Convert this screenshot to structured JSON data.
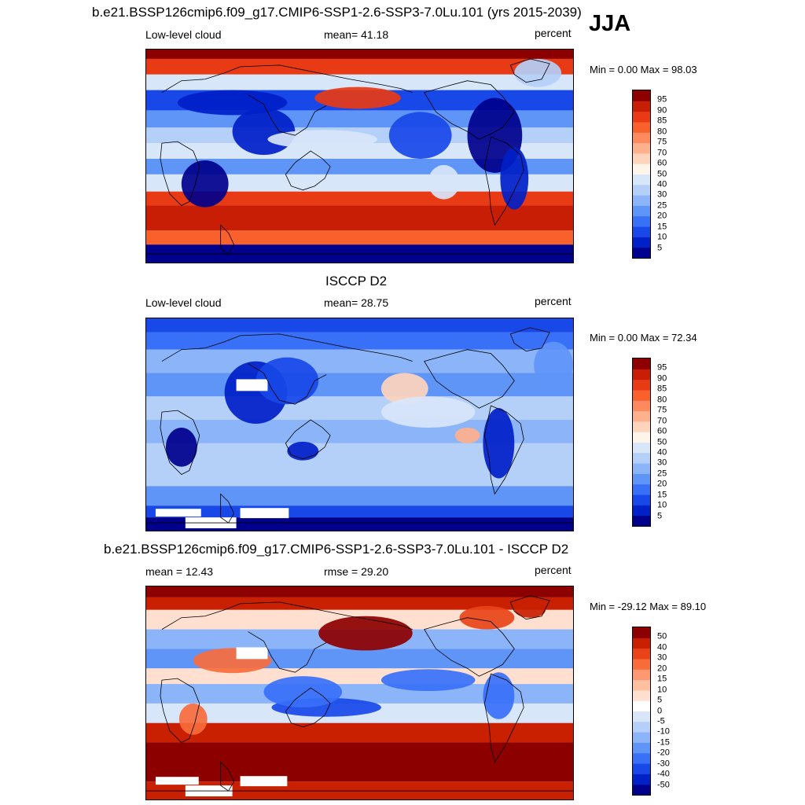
{
  "season": "JJA",
  "colors": {
    "full_scale": [
      "#00008c",
      "#0020c8",
      "#1848e8",
      "#3870f8",
      "#6095f8",
      "#8cb4f8",
      "#b4cff8",
      "#d8e6fa",
      "#fff4ea",
      "#ffd4bc",
      "#ffb08c",
      "#ff8a60",
      "#f8602c",
      "#e83a14",
      "#c81e06",
      "#8c0000"
    ],
    "diff_scale": [
      "#00008c",
      "#0020c8",
      "#1848e8",
      "#3870f8",
      "#6095f8",
      "#8cb4f8",
      "#b4cff8",
      "#d8e6fa",
      "#ffffff",
      "#ffe0d0",
      "#ffc0a0",
      "#ff9870",
      "#f86c3c",
      "#e84418",
      "#c82000",
      "#8c0000"
    ],
    "land_outline": "#000000",
    "missing": "#ffffff"
  },
  "panels": [
    {
      "id": "model",
      "title": "b.e21.BSSP126cmip6.f09_g17.CMIP6-SSP1-2.6-SSP3-7.0Lu.101 (yrs 2015-2039)",
      "left_label": "Low-level cloud",
      "center_label": "mean=  41.18",
      "units": "percent",
      "min_max": "Min =   0.00 Max =  98.03",
      "colorbar_labels": [
        "95",
        "90",
        "85",
        "80",
        "75",
        "70",
        "60",
        "50",
        "40",
        "30",
        "25",
        "20",
        "15",
        "10",
        "5"
      ],
      "field_mean_percent": 41.18,
      "scale": "full"
    },
    {
      "id": "obs",
      "title": "ISCCP D2",
      "left_label": "Low-level cloud",
      "center_label": "mean=  28.75",
      "units": "percent",
      "min_max": "Min =   0.00 Max =  72.34",
      "colorbar_labels": [
        "95",
        "90",
        "85",
        "80",
        "75",
        "70",
        "60",
        "50",
        "40",
        "30",
        "25",
        "20",
        "15",
        "10",
        "5"
      ],
      "field_mean_percent": 28.75,
      "scale": "full"
    },
    {
      "id": "diff",
      "title": "b.e21.BSSP126cmip6.f09_g17.CMIP6-SSP1-2.6-SSP3-7.0Lu.101 - ISCCP D2",
      "left_label": "mean =  12.43",
      "center_label": "rmse =  29.20",
      "units": "percent",
      "min_max": "Min = -29.12 Max =  89.10",
      "colorbar_labels": [
        "50",
        "40",
        "30",
        "20",
        "15",
        "10",
        "5",
        "0",
        "-5",
        "-10",
        "-15",
        "-20",
        "-30",
        "-40",
        "-50"
      ],
      "field_mean_percent": 12.43,
      "scale": "diff"
    }
  ]
}
